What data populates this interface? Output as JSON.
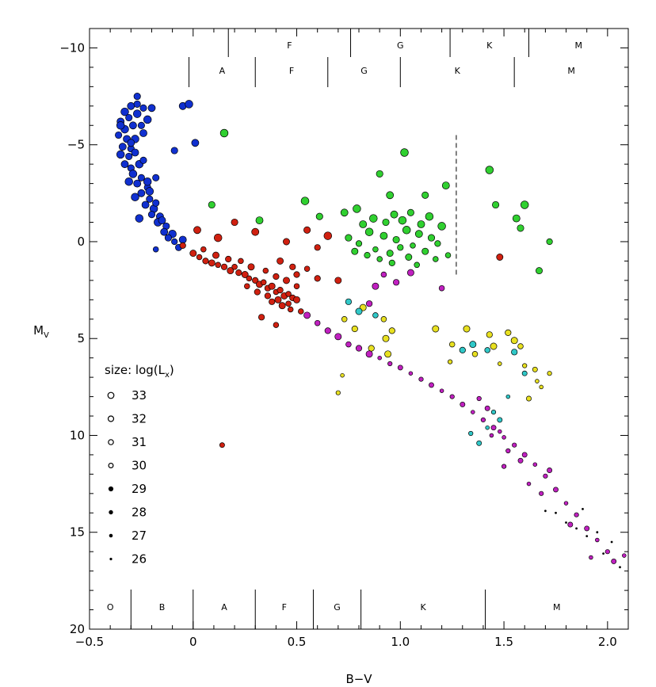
{
  "chart_data": {
    "type": "scatter",
    "title": "",
    "xlabel": "B−V",
    "ylabel": "M_V",
    "xlim": [
      -0.5,
      2.1
    ],
    "ylim": [
      20,
      -11
    ],
    "y_inverted": true,
    "x_ticks": [
      "−0.5",
      "0",
      "0.5",
      "1.0",
      "1.5",
      "2.0"
    ],
    "x_tick_values": [
      -0.5,
      0,
      0.5,
      1.0,
      1.5,
      2.0
    ],
    "y_ticks": [
      "−10",
      "−5",
      "0",
      "5",
      "10",
      "15",
      "20"
    ],
    "y_tick_values": [
      -10,
      -5,
      0,
      5,
      10,
      15,
      20
    ],
    "grid": false,
    "legend": {
      "title": "size: log(L",
      "title_sub": "x",
      "title_end": ")",
      "placement": "left",
      "entries": [
        "33",
        "32",
        "31",
        "30",
        "29",
        "28",
        "27",
        "26"
      ]
    },
    "spectral_bands": {
      "top_outer": [
        {
          "label": "F",
          "from": 0.17,
          "to": 0.76
        },
        {
          "label": "G",
          "from": 0.76,
          "to": 1.24
        },
        {
          "label": "K",
          "from": 1.24,
          "to": 1.62
        },
        {
          "label": "M",
          "from": 1.62,
          "to": 2.1
        }
      ],
      "top_inner": [
        {
          "label": "A",
          "from": -0.02,
          "to": 0.3
        },
        {
          "label": "F",
          "from": 0.3,
          "to": 0.65
        },
        {
          "label": "G",
          "from": 0.65,
          "to": 1.0
        },
        {
          "label": "K",
          "from": 1.0,
          "to": 1.55
        },
        {
          "label": "M",
          "from": 1.55,
          "to": 2.1
        }
      ],
      "bottom": [
        {
          "label": "O",
          "from": -0.5,
          "to": -0.3
        },
        {
          "label": "B",
          "from": -0.3,
          "to": 0.0
        },
        {
          "label": "A",
          "from": 0.0,
          "to": 0.3
        },
        {
          "label": "F",
          "from": 0.3,
          "to": 0.58
        },
        {
          "label": "G",
          "from": 0.58,
          "to": 0.81
        },
        {
          "label": "K",
          "from": 0.81,
          "to": 1.41
        },
        {
          "label": "M",
          "from": 1.41,
          "to": 2.1
        }
      ]
    },
    "reference_line": {
      "style": "dashed",
      "x": 1.27,
      "y_from": -5.5,
      "y_to": 1.7
    },
    "series": [
      {
        "color": "#1030d0",
        "points": [
          [
            -0.27,
            -7.5
          ],
          [
            -0.3,
            -7.0
          ],
          [
            -0.33,
            -6.7
          ],
          [
            -0.31,
            -6.4
          ],
          [
            -0.35,
            -6.2
          ],
          [
            -0.27,
            -6.6
          ],
          [
            -0.24,
            -6.9
          ],
          [
            -0.2,
            -6.9
          ],
          [
            -0.22,
            -6.3
          ],
          [
            -0.25,
            -6.0
          ],
          [
            -0.29,
            -6.0
          ],
          [
            -0.33,
            -5.8
          ],
          [
            -0.36,
            -5.5
          ],
          [
            -0.32,
            -5.3
          ],
          [
            -0.28,
            -5.3
          ],
          [
            -0.3,
            -4.8
          ],
          [
            -0.34,
            -4.9
          ],
          [
            -0.35,
            -4.5
          ],
          [
            -0.31,
            -4.4
          ],
          [
            -0.28,
            -4.6
          ],
          [
            -0.26,
            -4.0
          ],
          [
            -0.3,
            -3.8
          ],
          [
            -0.33,
            -4.0
          ],
          [
            -0.29,
            -3.5
          ],
          [
            -0.25,
            -3.3
          ],
          [
            -0.27,
            -3.0
          ],
          [
            -0.31,
            -3.1
          ],
          [
            -0.22,
            -2.8
          ],
          [
            -0.25,
            -2.5
          ],
          [
            -0.28,
            -2.3
          ],
          [
            -0.21,
            -2.2
          ],
          [
            -0.23,
            -1.9
          ],
          [
            -0.19,
            -1.7
          ],
          [
            -0.2,
            -1.4
          ],
          [
            -0.16,
            -1.3
          ],
          [
            -0.17,
            -1.0
          ],
          [
            -0.13,
            -0.8
          ],
          [
            -0.14,
            -0.5
          ],
          [
            -0.1,
            -0.4
          ],
          [
            -0.12,
            -0.2
          ],
          [
            -0.09,
            0.0
          ],
          [
            -0.07,
            0.3
          ],
          [
            -0.18,
            0.4
          ],
          [
            -0.05,
            -0.1
          ],
          [
            -0.22,
            -3.1
          ],
          [
            -0.18,
            -3.3
          ],
          [
            -0.05,
            -7.0
          ],
          [
            -0.02,
            -7.1
          ],
          [
            -0.09,
            -4.7
          ],
          [
            0.01,
            -5.1
          ],
          [
            -0.26,
            -1.2
          ],
          [
            -0.24,
            -4.2
          ],
          [
            -0.3,
            -5.1
          ],
          [
            -0.35,
            -6.0
          ],
          [
            -0.27,
            -7.1
          ],
          [
            -0.24,
            -5.6
          ],
          [
            -0.21,
            -2.6
          ],
          [
            -0.18,
            -2.0
          ],
          [
            -0.15,
            -1.1
          ]
        ]
      },
      {
        "color": "#d02010",
        "points": [
          [
            -0.05,
            0.2
          ],
          [
            0.0,
            0.6
          ],
          [
            0.03,
            0.8
          ],
          [
            0.06,
            1.0
          ],
          [
            0.09,
            1.1
          ],
          [
            0.12,
            1.2
          ],
          [
            0.15,
            1.3
          ],
          [
            0.18,
            1.5
          ],
          [
            0.2,
            1.3
          ],
          [
            0.22,
            1.6
          ],
          [
            0.25,
            1.7
          ],
          [
            0.27,
            1.9
          ],
          [
            0.3,
            2.0
          ],
          [
            0.32,
            2.2
          ],
          [
            0.34,
            2.1
          ],
          [
            0.36,
            2.4
          ],
          [
            0.38,
            2.3
          ],
          [
            0.4,
            2.6
          ],
          [
            0.42,
            2.5
          ],
          [
            0.44,
            2.8
          ],
          [
            0.46,
            2.7
          ],
          [
            0.48,
            2.9
          ],
          [
            0.5,
            3.0
          ],
          [
            0.35,
            1.5
          ],
          [
            0.4,
            1.8
          ],
          [
            0.45,
            2.0
          ],
          [
            0.5,
            2.3
          ],
          [
            0.38,
            3.1
          ],
          [
            0.43,
            3.3
          ],
          [
            0.47,
            3.5
          ],
          [
            0.36,
            2.8
          ],
          [
            0.41,
            3.0
          ],
          [
            0.46,
            3.2
          ],
          [
            0.5,
            1.7
          ],
          [
            0.28,
            1.3
          ],
          [
            0.23,
            1.0
          ],
          [
            0.17,
            0.9
          ],
          [
            0.11,
            0.7
          ],
          [
            0.05,
            0.4
          ],
          [
            0.02,
            -0.6
          ],
          [
            0.12,
            -0.2
          ],
          [
            0.2,
            -1.0
          ],
          [
            0.3,
            -0.5
          ],
          [
            0.45,
            0.0
          ],
          [
            0.55,
            -0.6
          ],
          [
            0.6,
            0.3
          ],
          [
            0.65,
            -0.3
          ],
          [
            0.55,
            1.4
          ],
          [
            0.6,
            1.9
          ],
          [
            0.7,
            2.0
          ],
          [
            0.4,
            4.3
          ],
          [
            0.33,
            3.9
          ],
          [
            0.14,
            10.5
          ],
          [
            0.52,
            3.6
          ],
          [
            0.48,
            1.3
          ],
          [
            0.42,
            1.0
          ],
          [
            0.26,
            2.3
          ],
          [
            0.31,
            2.6
          ],
          [
            1.48,
            0.8
          ]
        ]
      },
      {
        "color": "#30d030",
        "points": [
          [
            0.15,
            -5.6
          ],
          [
            0.09,
            -1.9
          ],
          [
            0.32,
            -1.1
          ],
          [
            0.54,
            -2.1
          ],
          [
            0.61,
            -1.3
          ],
          [
            0.73,
            -1.5
          ],
          [
            0.79,
            -1.7
          ],
          [
            0.9,
            -3.5
          ],
          [
            0.95,
            -2.4
          ],
          [
            1.02,
            -4.6
          ],
          [
            1.12,
            -2.4
          ],
          [
            1.22,
            -2.9
          ],
          [
            1.43,
            -3.7
          ],
          [
            1.46,
            -1.9
          ],
          [
            1.56,
            -1.2
          ],
          [
            1.6,
            -1.9
          ],
          [
            1.58,
            -0.7
          ],
          [
            1.72,
            0.0
          ],
          [
            1.67,
            1.5
          ],
          [
            0.75,
            -0.2
          ],
          [
            0.8,
            0.1
          ],
          [
            0.85,
            -0.5
          ],
          [
            0.88,
            0.4
          ],
          [
            0.92,
            -0.3
          ],
          [
            0.95,
            0.6
          ],
          [
            0.98,
            -0.1
          ],
          [
            1.0,
            0.3
          ],
          [
            1.03,
            -0.6
          ],
          [
            1.06,
            0.2
          ],
          [
            1.09,
            -0.4
          ],
          [
            1.12,
            0.5
          ],
          [
            1.15,
            -0.2
          ],
          [
            1.18,
            0.1
          ],
          [
            1.2,
            -0.8
          ],
          [
            1.23,
            0.7
          ],
          [
            0.82,
            -0.9
          ],
          [
            0.87,
            -1.2
          ],
          [
            0.93,
            -1.0
          ],
          [
            0.97,
            -1.4
          ],
          [
            1.01,
            -1.1
          ],
          [
            1.05,
            -1.5
          ],
          [
            1.1,
            -0.9
          ],
          [
            1.14,
            -1.3
          ],
          [
            0.9,
            0.9
          ],
          [
            0.96,
            1.1
          ],
          [
            1.04,
            0.8
          ],
          [
            1.08,
            1.2
          ],
          [
            0.84,
            0.7
          ],
          [
            0.78,
            0.5
          ],
          [
            1.17,
            0.9
          ]
        ]
      },
      {
        "color": "#e8e020",
        "points": [
          [
            0.73,
            4.0
          ],
          [
            0.78,
            4.5
          ],
          [
            0.82,
            3.4
          ],
          [
            0.92,
            4.0
          ],
          [
            0.96,
            4.6
          ],
          [
            0.93,
            5.0
          ],
          [
            0.72,
            6.9
          ],
          [
            0.7,
            7.8
          ],
          [
            1.17,
            4.5
          ],
          [
            1.25,
            5.3
          ],
          [
            1.24,
            6.2
          ],
          [
            1.32,
            4.5
          ],
          [
            1.36,
            5.8
          ],
          [
            1.43,
            4.8
          ],
          [
            1.45,
            5.4
          ],
          [
            1.48,
            6.3
          ],
          [
            1.52,
            4.7
          ],
          [
            1.55,
            5.1
          ],
          [
            1.58,
            5.4
          ],
          [
            1.6,
            6.4
          ],
          [
            1.65,
            6.6
          ],
          [
            1.68,
            7.5
          ],
          [
            1.72,
            6.8
          ],
          [
            1.62,
            8.1
          ],
          [
            1.66,
            7.2
          ],
          [
            0.86,
            5.5
          ],
          [
            0.94,
            5.8
          ]
        ]
      },
      {
        "color": "#30c8c8",
        "points": [
          [
            0.75,
            3.1
          ],
          [
            0.8,
            3.6
          ],
          [
            0.88,
            3.8
          ],
          [
            1.3,
            5.6
          ],
          [
            1.35,
            5.3
          ],
          [
            1.42,
            5.6
          ],
          [
            1.55,
            5.7
          ],
          [
            1.6,
            6.8
          ],
          [
            1.52,
            8.0
          ],
          [
            1.34,
            9.9
          ],
          [
            1.38,
            10.4
          ],
          [
            1.42,
            9.6
          ],
          [
            1.45,
            8.8
          ],
          [
            1.48,
            9.2
          ]
        ]
      },
      {
        "color": "#c020c0",
        "points": [
          [
            0.55,
            3.8
          ],
          [
            0.6,
            4.2
          ],
          [
            0.65,
            4.6
          ],
          [
            0.7,
            4.9
          ],
          [
            0.75,
            5.3
          ],
          [
            0.8,
            5.5
          ],
          [
            0.85,
            5.8
          ],
          [
            0.9,
            6.0
          ],
          [
            0.95,
            6.3
          ],
          [
            1.0,
            6.5
          ],
          [
            1.05,
            6.8
          ],
          [
            1.1,
            7.1
          ],
          [
            1.15,
            7.4
          ],
          [
            1.2,
            7.7
          ],
          [
            1.25,
            8.0
          ],
          [
            1.3,
            8.4
          ],
          [
            1.35,
            8.8
          ],
          [
            1.4,
            9.2
          ],
          [
            1.45,
            9.6
          ],
          [
            1.5,
            10.1
          ],
          [
            1.55,
            10.5
          ],
          [
            1.6,
            11.0
          ],
          [
            1.65,
            11.5
          ],
          [
            1.7,
            12.1
          ],
          [
            1.75,
            12.8
          ],
          [
            1.8,
            13.5
          ],
          [
            1.85,
            14.1
          ],
          [
            1.9,
            14.8
          ],
          [
            1.95,
            15.4
          ],
          [
            2.0,
            16.0
          ],
          [
            2.03,
            16.5
          ],
          [
            2.08,
            16.2
          ],
          [
            1.38,
            8.1
          ],
          [
            1.42,
            8.6
          ],
          [
            1.48,
            9.8
          ],
          [
            1.52,
            10.8
          ],
          [
            1.58,
            11.3
          ],
          [
            1.62,
            12.5
          ],
          [
            1.68,
            13.0
          ],
          [
            1.72,
            11.8
          ],
          [
            1.44,
            10.0
          ],
          [
            1.5,
            11.6
          ],
          [
            0.88,
            2.3
          ],
          [
            0.92,
            1.7
          ],
          [
            0.98,
            2.1
          ],
          [
            1.05,
            1.6
          ],
          [
            1.2,
            2.4
          ],
          [
            0.85,
            3.2
          ],
          [
            1.82,
            14.6
          ],
          [
            1.92,
            16.3
          ]
        ]
      },
      {
        "color": "#000000",
        "points": [
          [
            1.75,
            14.0
          ],
          [
            1.8,
            14.5
          ],
          [
            1.85,
            14.8
          ],
          [
            1.9,
            15.2
          ],
          [
            1.95,
            15.0
          ],
          [
            2.02,
            15.5
          ],
          [
            2.06,
            16.8
          ],
          [
            1.88,
            13.8
          ],
          [
            1.98,
            16.1
          ],
          [
            1.7,
            13.9
          ]
        ]
      }
    ]
  }
}
